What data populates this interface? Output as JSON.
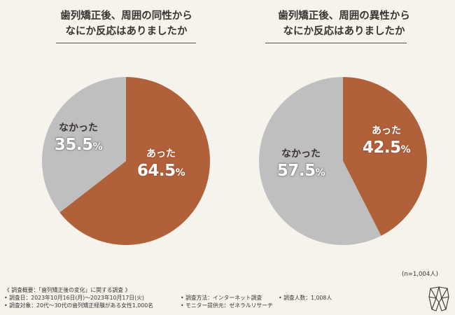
{
  "colors": {
    "accent": "#b0613a",
    "neutral": "#bfbfbf",
    "background": "#f6f3ed"
  },
  "chart_data": [
    {
      "type": "pie",
      "title_lines": [
        "歯列矯正後、周囲の同性から",
        "なにか反応はありましたか"
      ],
      "slices": [
        {
          "label": "あった",
          "value": 64.5,
          "value_text": "64.5",
          "unit": "%",
          "color": "#b0613a"
        },
        {
          "label": "なかった",
          "value": 35.5,
          "value_text": "35.5",
          "unit": "%",
          "color": "#bfbfbf"
        }
      ]
    },
    {
      "type": "pie",
      "title_lines": [
        "歯列矯正後、周囲の異性から",
        "なにか反応はありましたか"
      ],
      "slices": [
        {
          "label": "あった",
          "value": 42.5,
          "value_text": "42.5",
          "unit": "%",
          "color": "#b0613a"
        },
        {
          "label": "なかった",
          "value": 57.5,
          "value_text": "57.5",
          "unit": "%",
          "color": "#bfbfbf"
        }
      ]
    }
  ],
  "sample_note": "(n=1,004人)",
  "footer": {
    "heading": "《 調査概要：「歯列矯正後の変化」に関する調査 》",
    "period": "• 調査日：2023年10月16日(月)〜2023年10月17日(火)",
    "method": "• 調査方法：インターネット調査",
    "count": "• 調査人数：1,008人",
    "target": "• 調査対象：20代〜30代の歯列矯正経験がある女性1,000名",
    "provider": "• モニター提供元：ゼネラルリサーチ"
  },
  "logo": {
    "icon": "tooth-logo-icon"
  }
}
